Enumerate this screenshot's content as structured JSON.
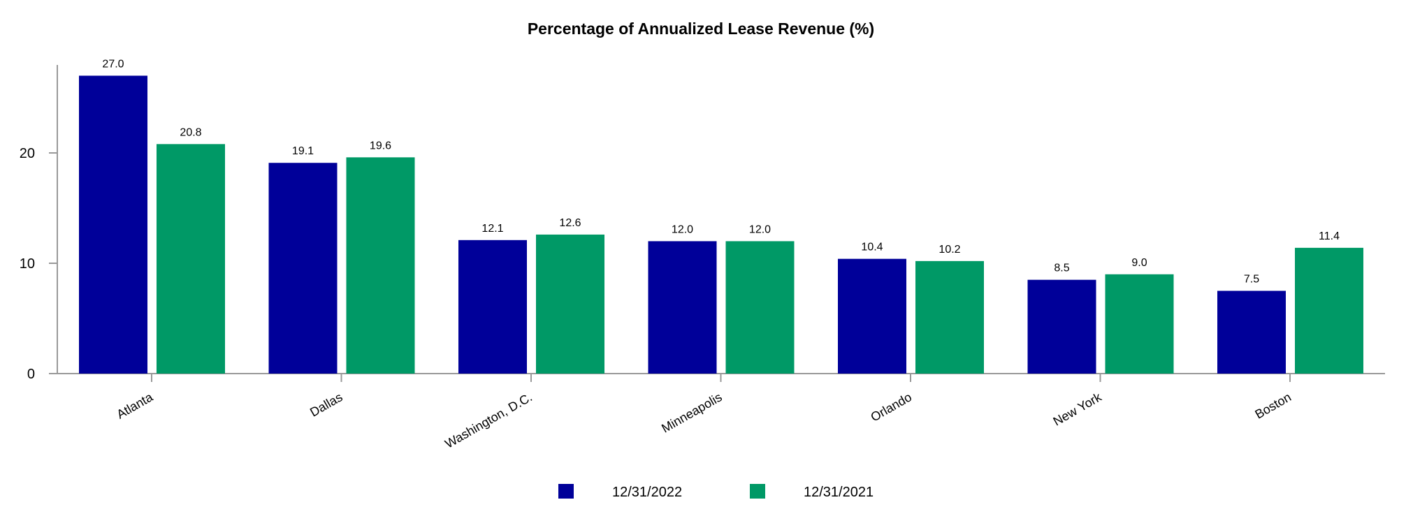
{
  "chart_data": {
    "type": "bar",
    "title": "Percentage of Annualized Lease Revenue (%)",
    "xlabel": "",
    "ylabel": "",
    "categories": [
      "Atlanta",
      "Dallas",
      "Washington, D.C.",
      "Minneapolis",
      "Orlando",
      "New York",
      "Boston"
    ],
    "series": [
      {
        "name": "12/31/2022",
        "color": "#000099",
        "values": [
          27.0,
          19.1,
          12.1,
          12.0,
          10.4,
          8.5,
          7.5
        ]
      },
      {
        "name": "12/31/2021",
        "color": "#009966",
        "values": [
          20.8,
          19.6,
          12.6,
          12.0,
          10.2,
          9.0,
          11.4
        ]
      }
    ],
    "yticks": [
      0,
      10,
      20
    ],
    "ylim": [
      0,
      28
    ],
    "grid": false,
    "legend_position": "bottom"
  }
}
